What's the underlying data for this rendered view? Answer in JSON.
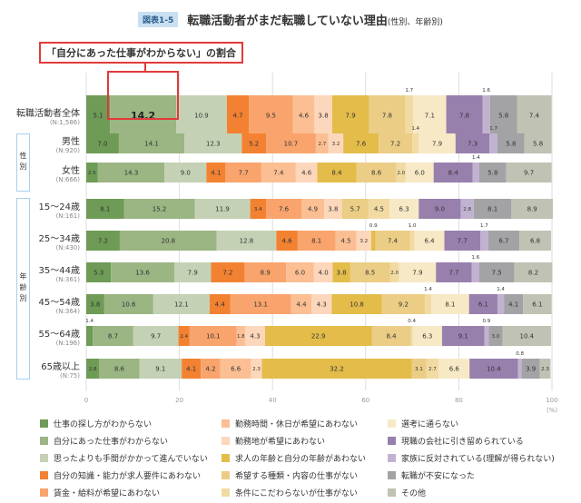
{
  "title": {
    "badge": "図表1-5",
    "main": "転職活動者がまだ転職していない理由",
    "sub": "(性別、年齢別)"
  },
  "callout": "「自分にあった仕事がわからない」の割合",
  "groups": {
    "gender": "性別",
    "age": "年齢別"
  },
  "chart_data": {
    "type": "bar",
    "orientation": "horizontal",
    "stacked": true,
    "xlim": [
      0,
      100
    ],
    "xticks": [
      "0",
      "20",
      "40",
      "60",
      "80",
      "100"
    ],
    "xunit": "(%)",
    "grid": true,
    "legend_placement": "bottom",
    "highlight": {
      "row": 0,
      "series": 1,
      "value": "14.2"
    },
    "categories": [
      {
        "label": "転職活動者全体",
        "n": "(N:1,586)"
      },
      {
        "label": "男性",
        "n": "(N:920)"
      },
      {
        "label": "女性",
        "n": "(N:666)"
      },
      {
        "label": "15～24歳",
        "n": "(N:161)"
      },
      {
        "label": "25～34歳",
        "n": "(N:430)"
      },
      {
        "label": "35～44歳",
        "n": "(N:361)"
      },
      {
        "label": "45～54歳",
        "n": "(N:364)"
      },
      {
        "label": "55～64歳",
        "n": "(N:196)"
      },
      {
        "label": "65歳以上",
        "n": "(N:75)"
      }
    ],
    "series": [
      {
        "name": "仕事の探し方がわからない",
        "color": "#6e9b55",
        "values": [
          5.1,
          7.0,
          2.5,
          8.1,
          7.2,
          5.3,
          3.8,
          1.4,
          2.8
        ]
      },
      {
        "name": "自分にあった仕事がわからない",
        "color": "#9bb583",
        "values": [
          14.2,
          14.1,
          14.3,
          15.2,
          20.8,
          13.6,
          10.6,
          8.7,
          8.6
        ]
      },
      {
        "name": "思ったよりも手間がかかって進んでいない",
        "color": "#c5d1b4",
        "values": [
          10.9,
          12.3,
          9.0,
          11.9,
          12.8,
          7.9,
          12.1,
          9.7,
          9.1
        ]
      },
      {
        "name": "自分の知識・能力が求人要件にあわない",
        "color": "#f28232",
        "values": [
          4.7,
          5.2,
          4.1,
          3.4,
          4.6,
          7.2,
          4.4,
          2.4,
          4.1
        ]
      },
      {
        "name": "賃金・給料が希望にあわない",
        "color": "#f9a46c",
        "values": [
          9.5,
          10.7,
          7.7,
          7.6,
          8.1,
          8.9,
          13.1,
          10.1,
          4.2
        ]
      },
      {
        "name": "勤務時間・休日が希望にあわない",
        "color": "#fbbf93",
        "values": [
          4.6,
          2.7,
          7.4,
          4.9,
          4.5,
          6.0,
          4.4,
          1.8,
          6.6
        ]
      },
      {
        "name": "勤務地が希望にあわない",
        "color": "#fdd7bb",
        "values": [
          3.8,
          3.2,
          4.6,
          3.8,
          3.2,
          4.0,
          4.3,
          4.3,
          2.3
        ]
      },
      {
        "name": "求人の年齢と自分の年齢があわない",
        "color": "#e3bc4a",
        "values": [
          7.9,
          7.6,
          8.4,
          0,
          0.9,
          3.8,
          10.8,
          22.9,
          32.2
        ]
      },
      {
        "name": "希望する種類・内容の仕事がない",
        "color": "#ebcd85",
        "values": [
          7.8,
          7.2,
          8.6,
          5.7,
          7.4,
          8.5,
          9.2,
          8.4,
          3.1
        ]
      },
      {
        "name": "条件にこだわらないが仕事がない",
        "color": "#f1dba3",
        "values": [
          1.7,
          1.4,
          2.0,
          4.5,
          1.0,
          2.0,
          1.4,
          0.4,
          2.7
        ]
      },
      {
        "name": "選考に通らない",
        "color": "#f7e9c6",
        "values": [
          7.1,
          7.9,
          6.0,
          6.3,
          6.4,
          7.9,
          8.1,
          6.3,
          6.6
        ]
      },
      {
        "name": "現職の会社に引き留められている",
        "color": "#9880ad",
        "values": [
          7.8,
          7.3,
          8.4,
          9.0,
          7.7,
          7.7,
          6.1,
          9.1,
          10.4
        ]
      },
      {
        "name": "家族に反対されている(理解が得られない)",
        "color": "#c2b2d1",
        "values": [
          1.6,
          1.7,
          1.4,
          2.8,
          1.7,
          1.6,
          1.4,
          0.9,
          0.8
        ]
      },
      {
        "name": "転職が不安になった",
        "color": "#a3a2a4",
        "values": [
          5.8,
          5.8,
          5.8,
          8.1,
          6.7,
          7.5,
          4.1,
          3.0,
          3.9
        ]
      },
      {
        "name": "その他",
        "color": "#c0c2b4",
        "values": [
          7.4,
          5.8,
          9.7,
          8.9,
          6.8,
          8.2,
          6.1,
          10.4,
          2.3
        ]
      }
    ]
  }
}
